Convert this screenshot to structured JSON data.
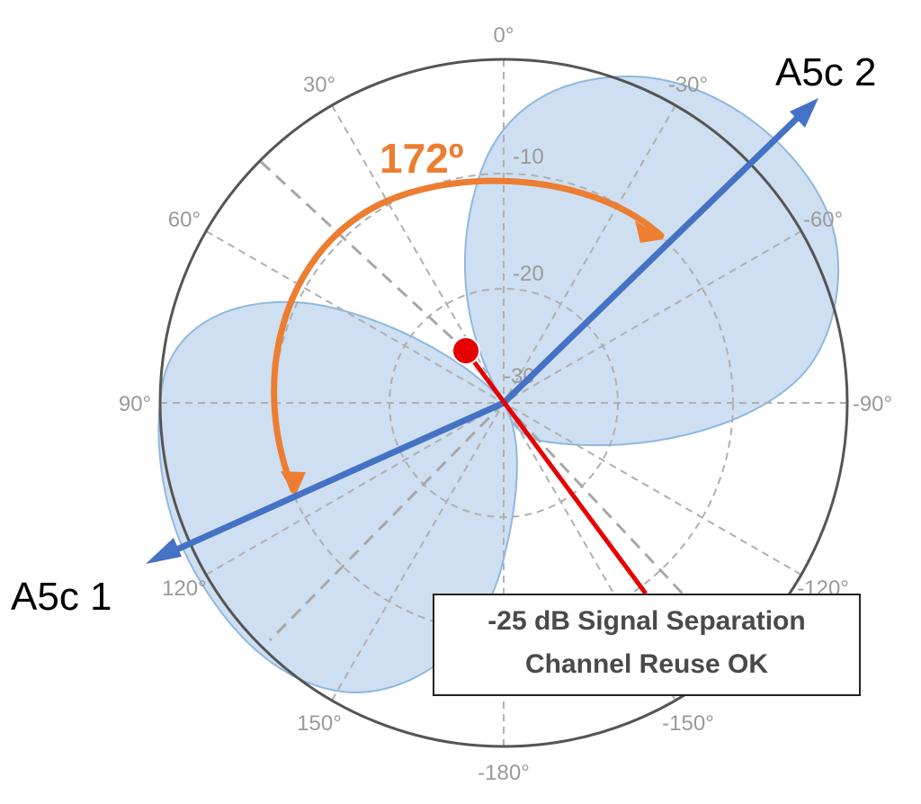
{
  "polar_plot": {
    "angle_labels": [
      {
        "deg": 0,
        "text": "0°"
      },
      {
        "deg": 30,
        "text": "30°"
      },
      {
        "deg": 60,
        "text": "60°"
      },
      {
        "deg": 90,
        "text": "90°"
      },
      {
        "deg": 120,
        "text": "120°"
      },
      {
        "deg": 150,
        "text": "150°"
      },
      {
        "deg": 180,
        "text": "-180°"
      },
      {
        "deg": -150,
        "text": "-150°"
      },
      {
        "deg": -120,
        "text": "-120°"
      },
      {
        "deg": -90,
        "text": "-90°"
      },
      {
        "deg": -60,
        "text": "-60°"
      },
      {
        "deg": -30,
        "text": "-30°"
      }
    ],
    "ring_labels": [
      "-10",
      "-20",
      "-30"
    ],
    "colors": {
      "pattern_fill": "#c5d9ee",
      "pattern_stroke": "#8fb8e0",
      "antenna": "#4472c4",
      "arc": "#ed7d31",
      "marker": "#e60000",
      "grid": "#b0b0b0",
      "outer_ring": "#555555"
    }
  },
  "antennas": {
    "a1_label": "A5c 1",
    "a2_label": "A5c 2"
  },
  "separation": {
    "angle_label": "172º"
  },
  "callout": {
    "line1": "-25 dB Signal Separation",
    "line2": "Channel Reuse OK"
  }
}
